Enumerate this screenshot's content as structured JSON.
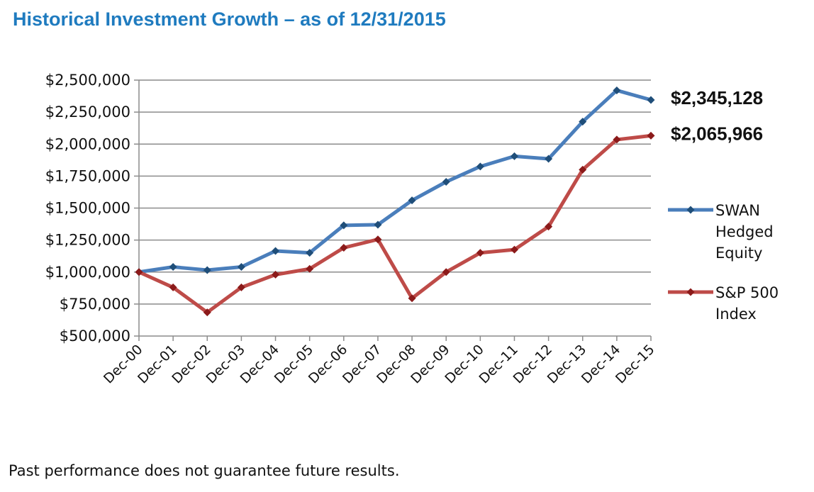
{
  "title": "Historical Investment Growth – as of 12/31/2015",
  "footnote": "Past performance does not guarantee future results.",
  "chart_data": {
    "type": "line",
    "categories": [
      "Dec-00",
      "Dec-01",
      "Dec-02",
      "Dec-03",
      "Dec-04",
      "Dec-05",
      "Dec-06",
      "Dec-07",
      "Dec-08",
      "Dec-09",
      "Dec-10",
      "Dec-11",
      "Dec-12",
      "Dec-13",
      "Dec-14",
      "Dec-15"
    ],
    "ylim": [
      500000,
      2500000
    ],
    "yticks": [
      500000,
      750000,
      1000000,
      1250000,
      1500000,
      1750000,
      2000000,
      2250000,
      2500000
    ],
    "ytick_labels": [
      "$500,000",
      "$750,000",
      "$1,000,000",
      "$1,250,000",
      "$1,500,000",
      "$1,750,000",
      "$2,000,000",
      "$2,250,000",
      "$2,500,000"
    ],
    "grid": true,
    "legend_position": "right",
    "series": [
      {
        "name": "SWAN Hedged Equity",
        "legend_lines": [
          "SWAN",
          "Hedged",
          "Equity"
        ],
        "color": "#4a7ebb",
        "marker_color": "#1f4e79",
        "values": [
          1000000,
          1040000,
          1015000,
          1040000,
          1165000,
          1150000,
          1365000,
          1370000,
          1560000,
          1705000,
          1825000,
          1905000,
          1885000,
          2175000,
          2420000,
          2345128
        ],
        "end_label": "$2,345,128"
      },
      {
        "name": "S&P 500 Index",
        "legend_lines": [
          "S&P 500",
          "Index"
        ],
        "color": "#be4b48",
        "marker_color": "#8b1a1a",
        "values": [
          1000000,
          880000,
          685000,
          880000,
          980000,
          1025000,
          1190000,
          1255000,
          795000,
          1000000,
          1150000,
          1175000,
          1355000,
          1800000,
          2035000,
          2065966
        ],
        "end_label": "$2,065,966"
      }
    ]
  }
}
